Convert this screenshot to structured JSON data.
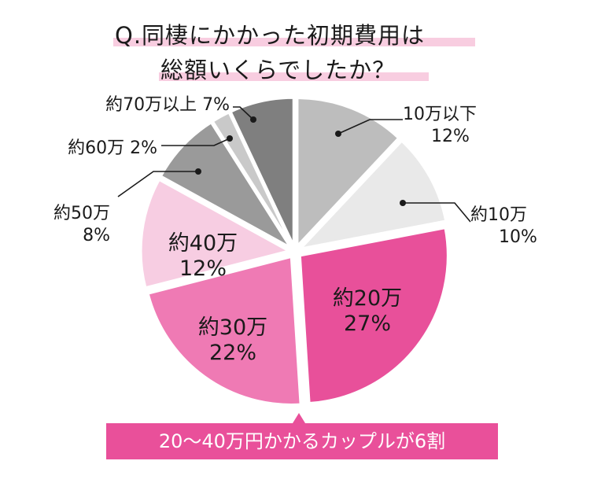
{
  "title": {
    "line1": "Q.同棲にかかった初期費用は",
    "line2": "総額いくらでしたか？"
  },
  "chart_data": {
    "type": "pie",
    "title": "Q.同棲にかかった初期費用は総額いくらでしたか？",
    "start": "12 o'clock",
    "direction": "clockwise",
    "slices": [
      {
        "label": "10万以下",
        "value": 12,
        "display": "12%",
        "color": "#bdbdbd"
      },
      {
        "label": "約10万",
        "value": 10,
        "display": "10%",
        "color": "#e9e9e9"
      },
      {
        "label": "約20万",
        "value": 27,
        "display": "27%",
        "color": "#e8509a"
      },
      {
        "label": "約30万",
        "value": 22,
        "display": "22%",
        "color": "#ef7ab4"
      },
      {
        "label": "約40万",
        "value": 12,
        "display": "12%",
        "color": "#f7cde2"
      },
      {
        "label": "約50万",
        "value": 8,
        "display": "8%",
        "color": "#9a9a9a"
      },
      {
        "label": "約60万",
        "value": 2,
        "display": "2%",
        "color": "#c9c9c9"
      },
      {
        "label": "約70万以上",
        "value": 7,
        "display": "7%",
        "color": "#7f7f7f"
      }
    ]
  },
  "callout": {
    "text": "20〜40万円かかるカップルが6割"
  }
}
